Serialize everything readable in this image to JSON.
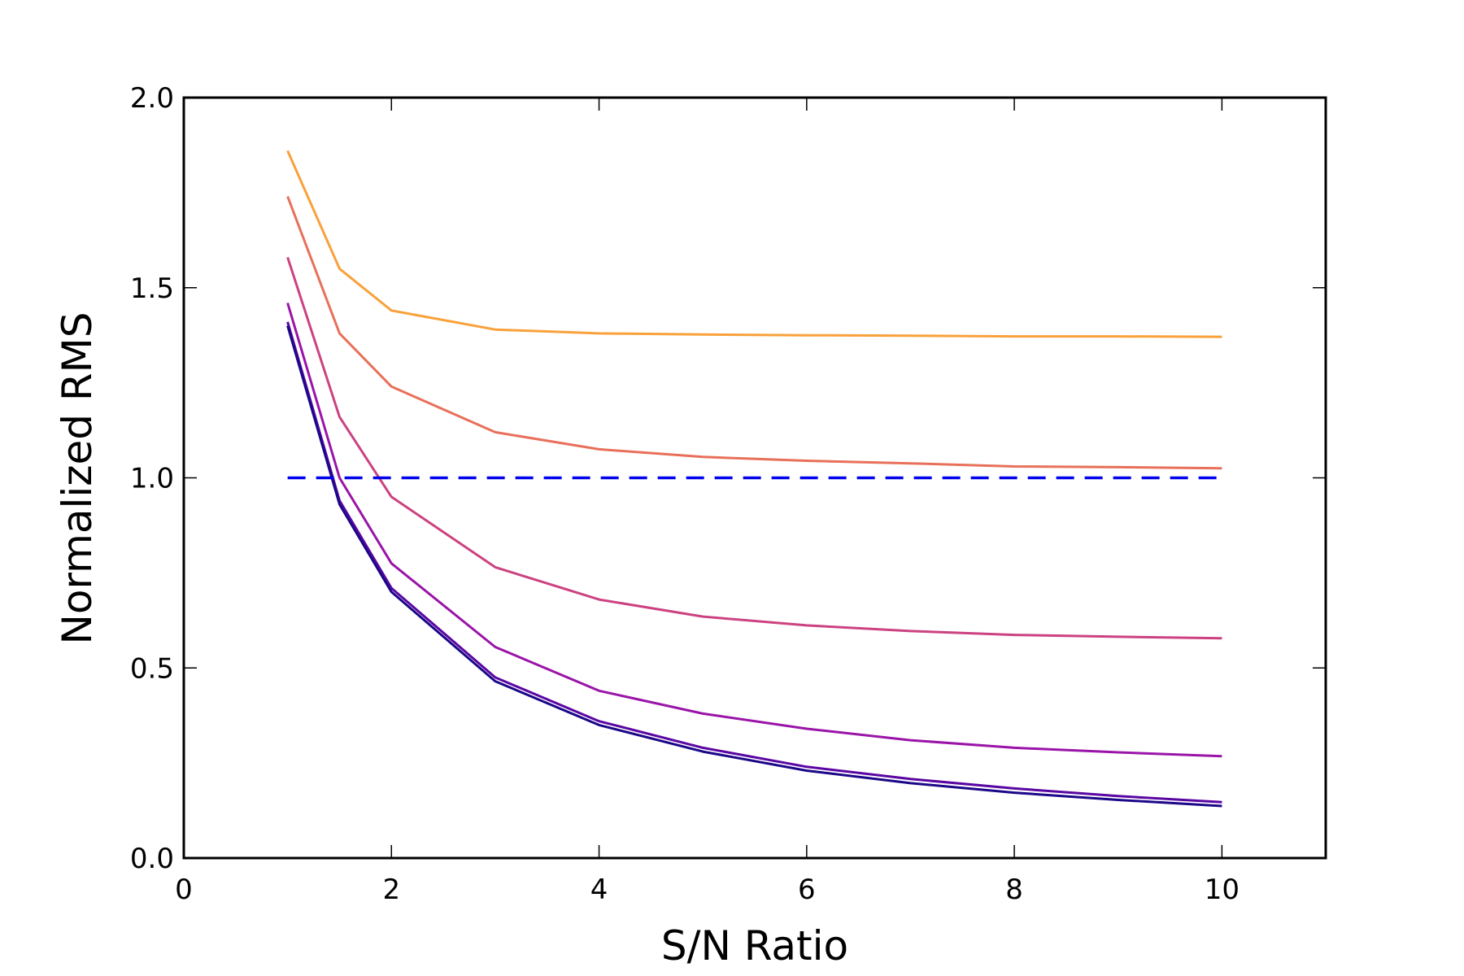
{
  "chart_data": {
    "type": "line",
    "title": "",
    "xlabel": "S/N Ratio",
    "ylabel": "Normalized RMS",
    "xlim": [
      0,
      11
    ],
    "ylim": [
      0.0,
      2.0
    ],
    "xticks": [
      0,
      2,
      4,
      6,
      8,
      10
    ],
    "xtick_labels": [
      "0",
      "2",
      "4",
      "6",
      "8",
      "10"
    ],
    "yticks": [
      0.0,
      0.5,
      1.0,
      1.5,
      2.0
    ],
    "ytick_labels": [
      "0.0",
      "0.5",
      "1.0",
      "1.5",
      "2.0"
    ],
    "grid": false,
    "legend": "none",
    "x": [
      1,
      1.5,
      2,
      3,
      4,
      5,
      6,
      7,
      8,
      9,
      10
    ],
    "series": [
      {
        "color": "#f9a13b",
        "style": "solid",
        "values": [
          1.86,
          1.55,
          1.44,
          1.39,
          1.38,
          1.377,
          1.375,
          1.374,
          1.372,
          1.372,
          1.371
        ]
      },
      {
        "color": "#e8705a",
        "style": "solid",
        "values": [
          1.74,
          1.38,
          1.24,
          1.12,
          1.075,
          1.055,
          1.045,
          1.038,
          1.03,
          1.028,
          1.025
        ]
      },
      {
        "color": "#cc4280",
        "style": "solid",
        "values": [
          1.58,
          1.16,
          0.95,
          0.765,
          0.68,
          0.635,
          0.612,
          0.597,
          0.587,
          0.582,
          0.578
        ]
      },
      {
        "color": "#9a14a8",
        "style": "solid",
        "values": [
          1.46,
          1.0,
          0.775,
          0.555,
          0.44,
          0.38,
          0.34,
          0.31,
          0.29,
          0.278,
          0.268
        ]
      },
      {
        "color": "#5a06a2",
        "style": "solid",
        "values": [
          1.41,
          0.94,
          0.71,
          0.475,
          0.36,
          0.29,
          0.24,
          0.208,
          0.183,
          0.163,
          0.147
        ]
      },
      {
        "color": "#1b0788",
        "style": "solid",
        "values": [
          1.4,
          0.93,
          0.7,
          0.465,
          0.35,
          0.28,
          0.23,
          0.197,
          0.172,
          0.153,
          0.137
        ]
      }
    ],
    "reference_line": {
      "y": 1.0,
      "x_range": [
        1,
        10
      ],
      "color": "#0000ee",
      "style": "dashed"
    }
  }
}
